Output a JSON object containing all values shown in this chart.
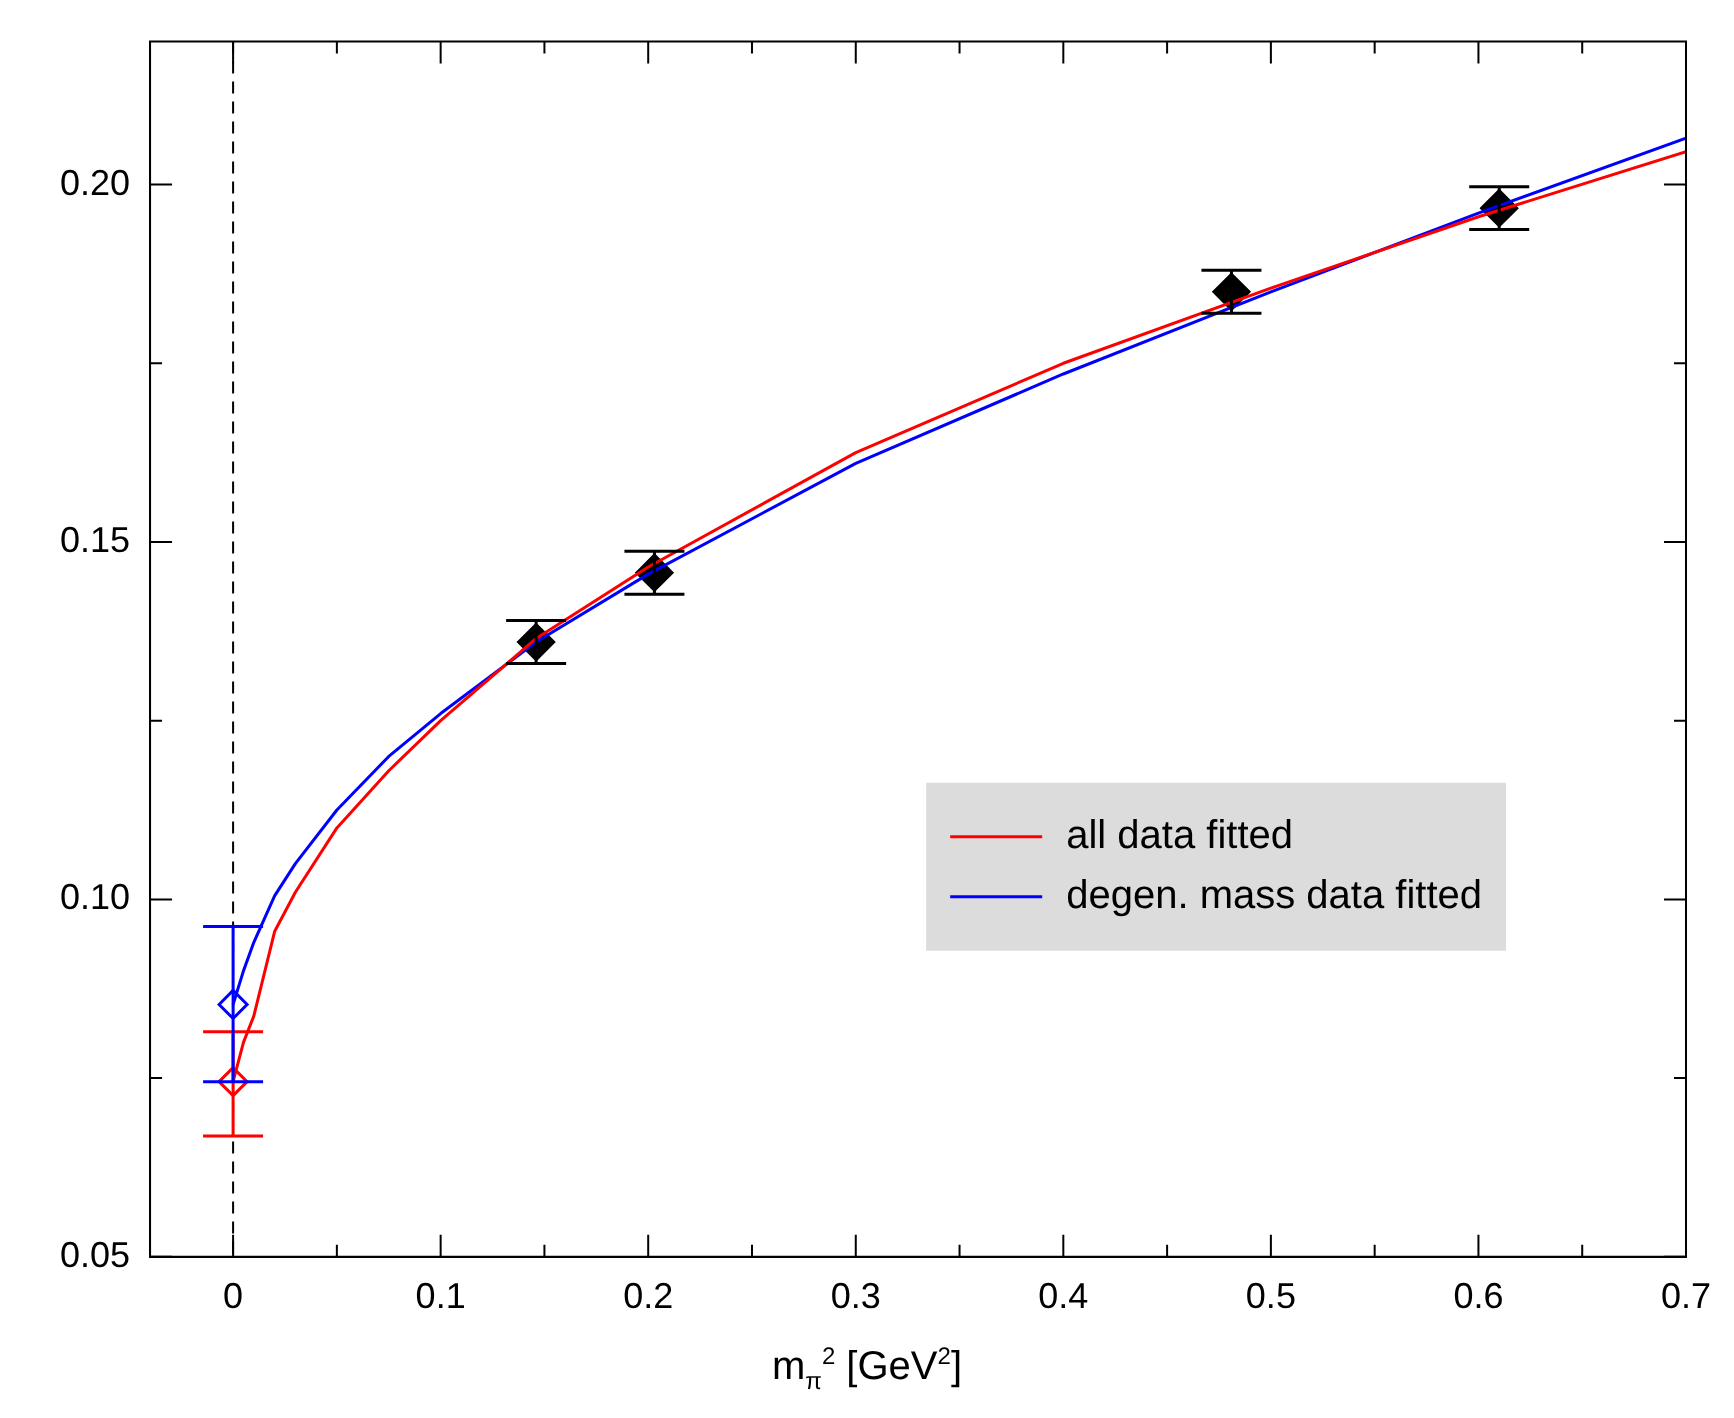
{
  "chart_data": {
    "type": "scatter",
    "xlabel": "m$_{π}$$^{2}$ [GeV$^{2}$]",
    "xlim": [
      -0.04,
      0.7
    ],
    "ylim": [
      0.05,
      0.22
    ],
    "xticks": [
      0,
      {
        "value": 0.05,
        "label": null
      },
      0.1,
      {
        "value": 0.15,
        "label": null
      },
      0.2,
      {
        "value": 0.25,
        "label": null
      },
      0.3,
      {
        "value": 0.35,
        "label": null
      },
      0.4,
      {
        "value": 0.45,
        "label": null
      },
      0.5,
      {
        "value": 0.55,
        "label": null
      },
      0.6,
      {
        "value": 0.65,
        "label": null
      },
      0.7
    ],
    "yticks": [
      0.05,
      {
        "value": 0.075,
        "label": null
      },
      {
        "value": 0.1,
        "label": "0.10"
      },
      {
        "value": 0.125,
        "label": null
      },
      0.15,
      {
        "value": 0.175,
        "label": null
      },
      {
        "value": 0.2,
        "label": "0.20"
      }
    ],
    "grid": false,
    "legend": "right",
    "marker": "diamond",
    "ref_lines": [
      {
        "axis": "x",
        "value": 0,
        "label": null,
        "color": "#000000",
        "line_style": "dashed"
      }
    ],
    "series": [
      {
        "type": "line",
        "marker": "none",
        "name": "all data fitted",
        "color": "#ff0000",
        "x": [
          0,
          0.005,
          0.01,
          0.02,
          0.03,
          0.05,
          0.075,
          0.1,
          0.146,
          0.2,
          0.3,
          0.4,
          0.5,
          0.6,
          0.7
        ],
        "values": [
          0.0745,
          0.08,
          0.0837,
          0.0955,
          0.101,
          0.11,
          0.118,
          0.125,
          0.1365,
          0.1465,
          0.1625,
          0.175,
          0.1855,
          0.1955,
          0.2046
        ]
      },
      {
        "type": "line",
        "marker": "none",
        "name": "degen. mass data fitted",
        "color": "#0000ff",
        "x": [
          0,
          0.005,
          0.01,
          0.02,
          0.03,
          0.05,
          0.075,
          0.1,
          0.146,
          0.2,
          0.3,
          0.4,
          0.5,
          0.6,
          0.7
        ],
        "values": [
          0.0853,
          0.09,
          0.094,
          0.1005,
          0.105,
          0.1125,
          0.12,
          0.126,
          0.136,
          0.1455,
          0.161,
          0.1735,
          0.185,
          0.196,
          0.2065
        ]
      },
      {
        "color": "#000000",
        "x": [
          0.146,
          0.203,
          0.481,
          0.61
        ],
        "values": [
          0.136,
          0.1457,
          0.185,
          0.1967
        ],
        "errors": [
          0.003,
          0.003,
          0.003,
          0.003
        ]
      },
      {
        "color": "#ff0000",
        "x": [
          0
        ],
        "values": [
          0.0745
        ],
        "errors": [
          [
            0.0669,
            0.0815
          ]
        ]
      },
      {
        "color": "#0000ff",
        "x": [
          0
        ],
        "values": [
          0.0853
        ],
        "errors": [
          [
            0.0745,
            0.0962
          ]
        ]
      }
    ]
  }
}
